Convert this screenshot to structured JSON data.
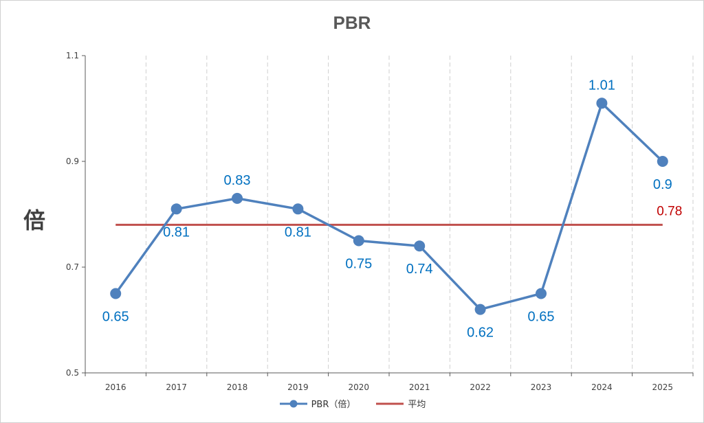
{
  "chart_data": {
    "type": "line",
    "title": "PBR",
    "ylabel": "倍",
    "xlabel": "",
    "categories": [
      "2016",
      "2017",
      "2018",
      "2019",
      "2020",
      "2021",
      "2022",
      "2023",
      "2024",
      "2025"
    ],
    "series": [
      {
        "name": "PBR（倍）",
        "values": [
          0.65,
          0.81,
          0.83,
          0.81,
          0.75,
          0.74,
          0.62,
          0.65,
          1.01,
          0.9
        ],
        "color": "#4f81bd",
        "label_color": "#0070c0"
      },
      {
        "name": "平均",
        "values": [
          0.78,
          0.78,
          0.78,
          0.78,
          0.78,
          0.78,
          0.78,
          0.78,
          0.78,
          0.78
        ],
        "color": "#c0504d",
        "label_color": "#c00000"
      }
    ],
    "average_label": "0.78",
    "ylim": [
      0.5,
      1.1
    ],
    "yticks": [
      "0.5",
      "0.7",
      "0.9",
      "1.1"
    ],
    "grid": "vertical-dashed",
    "legend": "bottom"
  }
}
